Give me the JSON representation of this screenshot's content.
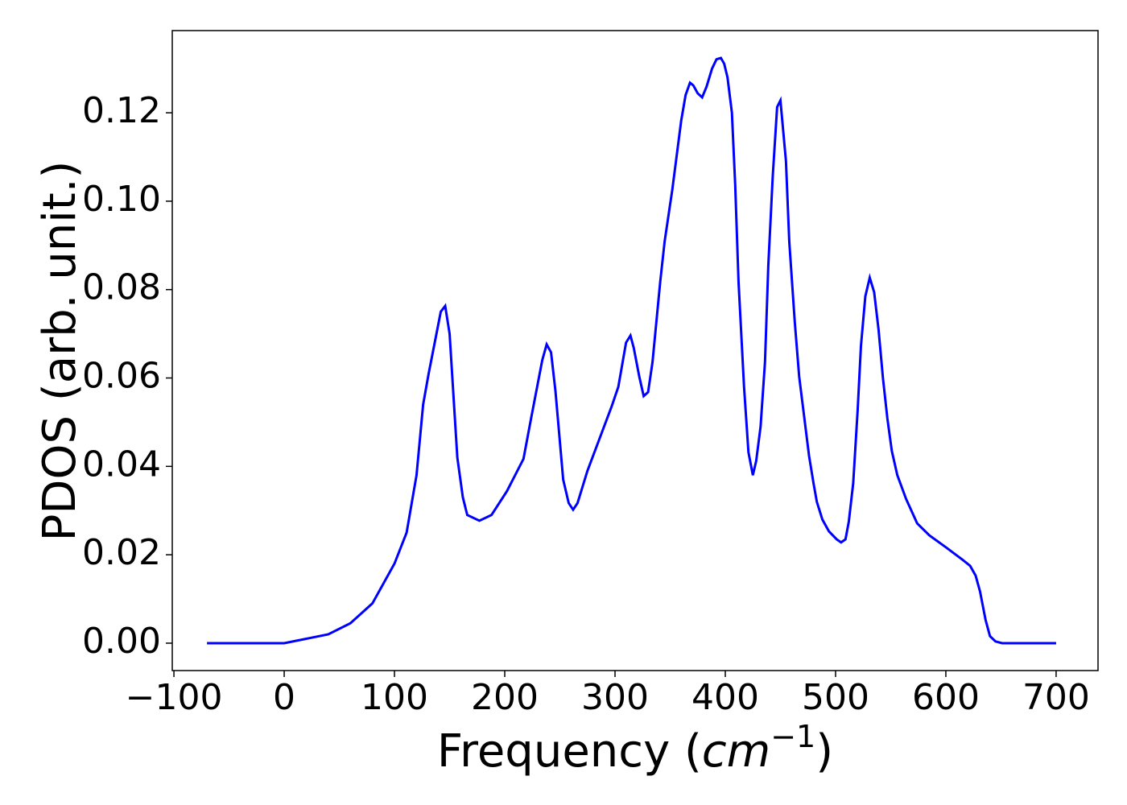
{
  "chart_data": {
    "type": "line",
    "x_label": [
      "Frequency (",
      "cm",
      "−1",
      ")"
    ],
    "y_label": "PDOS (arb. unit.)",
    "xlim": [
      -101.5,
      738
    ],
    "ylim": [
      -0.0062,
      0.1386
    ],
    "xticks": [
      {
        "value": -100,
        "label": "−100"
      },
      0,
      100,
      200,
      300,
      400,
      500,
      600,
      700
    ],
    "yticks": [
      {
        "value": 0,
        "label": "0.00"
      },
      {
        "value": 0.02,
        "label": "0.02"
      },
      {
        "value": 0.04,
        "label": "0.04"
      },
      {
        "value": 0.06,
        "label": "0.06"
      },
      {
        "value": 0.08,
        "label": "0.08"
      },
      {
        "value": 0.1,
        "label": "0.10"
      },
      {
        "value": 0.12,
        "label": "0.12"
      }
    ],
    "series": [
      {
        "color": "#0000ff",
        "x": [
          -70,
          0,
          20,
          40,
          60,
          80,
          100,
          111,
          120,
          126,
          131,
          142,
          146,
          150,
          157,
          162,
          166,
          177,
          188,
          202,
          217,
          224,
          234,
          238,
          242,
          246,
          253,
          258,
          262,
          266,
          275,
          286,
          297,
          303,
          310,
          314,
          317,
          322,
          326,
          330,
          334,
          341,
          345,
          352,
          360,
          364,
          368,
          371,
          375,
          379,
          383,
          388,
          392,
          396,
          399,
          402,
          406,
          409,
          412,
          417,
          421,
          425,
          428,
          432,
          436,
          439,
          443,
          447,
          450,
          455,
          458,
          463,
          467,
          472,
          476,
          480,
          483,
          488,
          494,
          501,
          505,
          509,
          512,
          516,
          520,
          523,
          527,
          531,
          535,
          539,
          543,
          547,
          551,
          556,
          564,
          574,
          585,
          600,
          615,
          622,
          627,
          631,
          636,
          640,
          645,
          651,
          700
        ],
        "values": [
          0,
          0,
          0.001,
          0.002,
          0.0045,
          0.009,
          0.018,
          0.025,
          0.038,
          0.054,
          0.061,
          0.075,
          0.0763,
          0.07,
          0.042,
          0.033,
          0.029,
          0.0277,
          0.029,
          0.0344,
          0.0417,
          0.051,
          0.064,
          0.0676,
          0.0658,
          0.057,
          0.037,
          0.0317,
          0.0302,
          0.0317,
          0.039,
          0.0463,
          0.0536,
          0.058,
          0.068,
          0.0696,
          0.0668,
          0.0603,
          0.0559,
          0.0568,
          0.0636,
          0.0818,
          0.0909,
          0.1027,
          0.1182,
          0.124,
          0.1268,
          0.1262,
          0.1244,
          0.1235,
          0.1259,
          0.13,
          0.1321,
          0.1324,
          0.1311,
          0.128,
          0.12,
          0.1036,
          0.0818,
          0.058,
          0.0432,
          0.038,
          0.0412,
          0.049,
          0.0636,
          0.0854,
          0.1055,
          0.1213,
          0.1228,
          0.1091,
          0.0909,
          0.0727,
          0.0603,
          0.0503,
          0.0423,
          0.0362,
          0.032,
          0.028,
          0.0253,
          0.0235,
          0.0228,
          0.0235,
          0.0275,
          0.0362,
          0.0526,
          0.0672,
          0.0785,
          0.0827,
          0.0794,
          0.0709,
          0.0599,
          0.0508,
          0.0435,
          0.038,
          0.0326,
          0.0271,
          0.0244,
          0.0217,
          0.0189,
          0.0175,
          0.0153,
          0.0117,
          0.0053,
          0.0016,
          0.0004,
          0,
          0
        ]
      }
    ]
  }
}
